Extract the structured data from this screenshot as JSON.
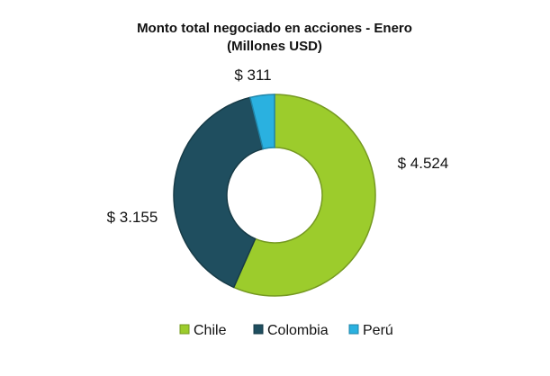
{
  "chart_data": {
    "type": "pie",
    "title": "Monto total negociado en acciones - Enero",
    "subtitle": "(Millones USD)",
    "categories": [
      "Chile",
      "Colombia",
      "Perú"
    ],
    "values": [
      4524,
      3155,
      311
    ],
    "data_labels": [
      "$ 4.524",
      "$ 3.155",
      "$ 311"
    ],
    "colors": [
      "#9ccc2c",
      "#1f4e5f",
      "#2ab1e0"
    ],
    "donut": true,
    "legend": "bottom"
  }
}
